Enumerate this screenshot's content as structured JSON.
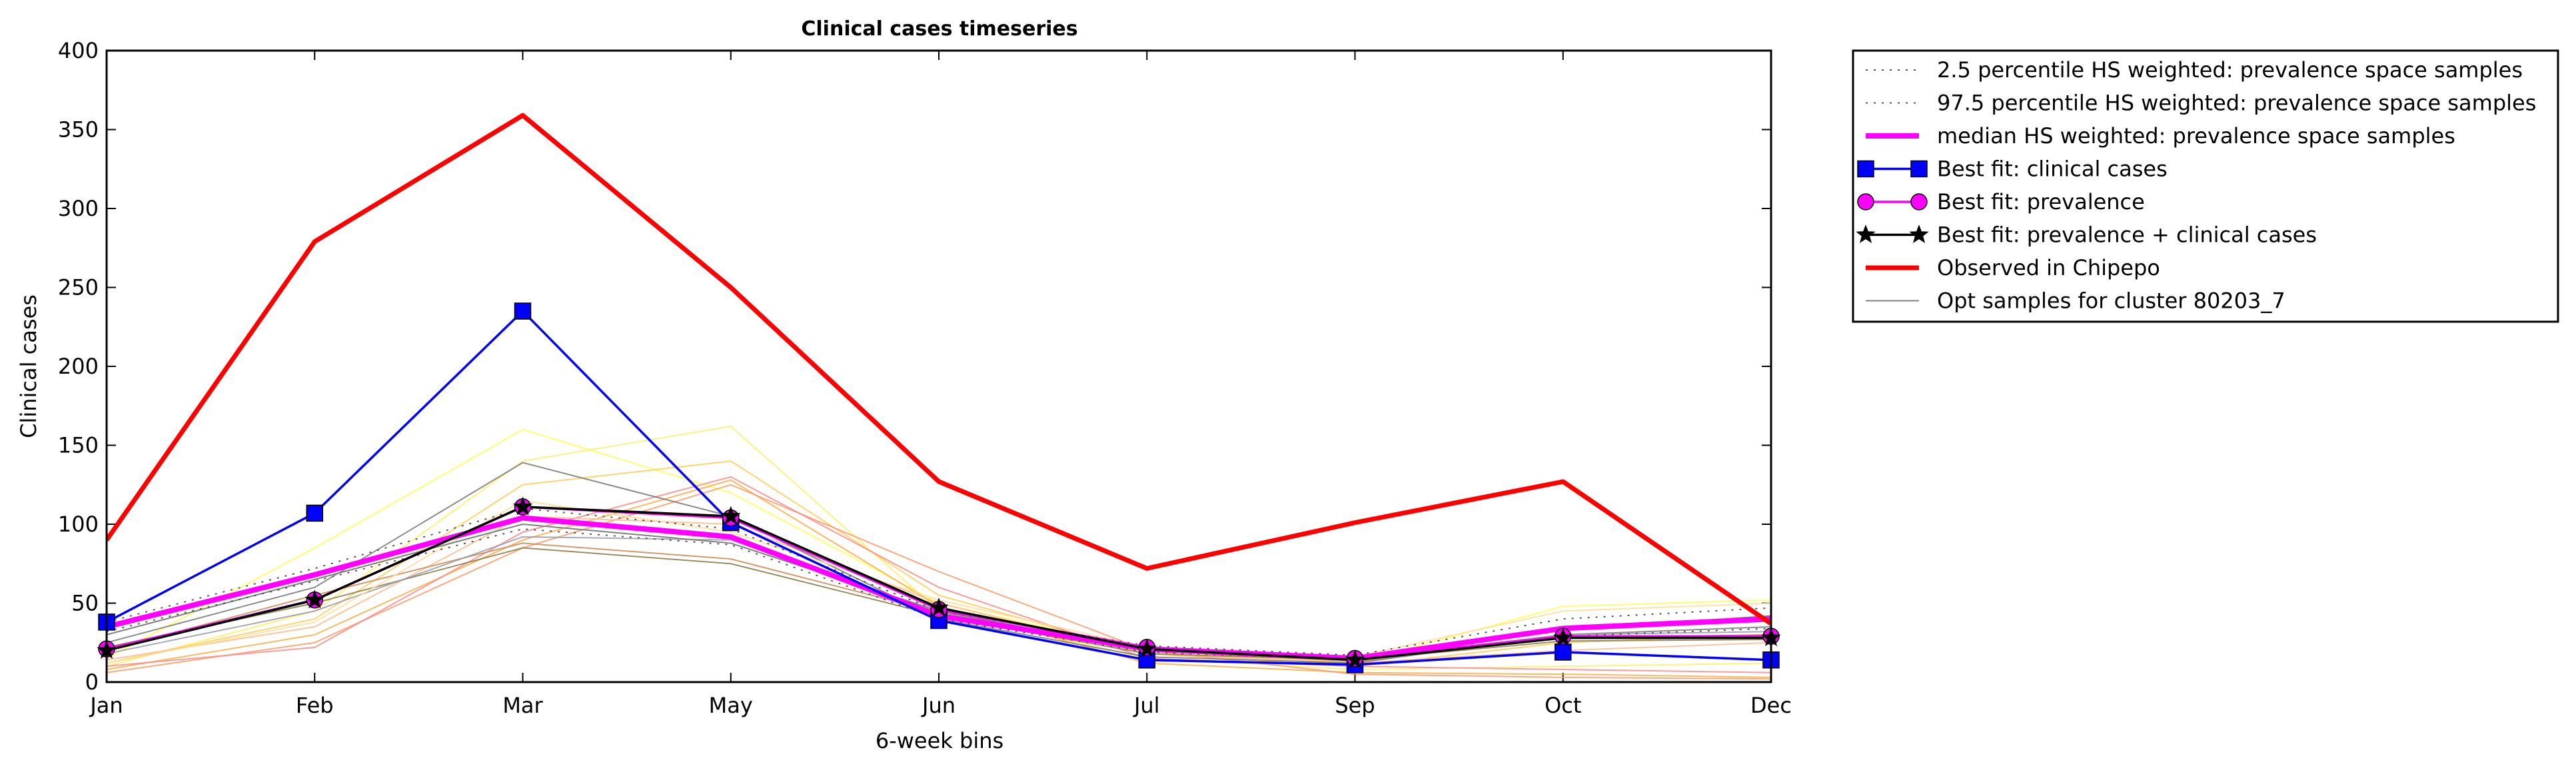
{
  "chart_data": {
    "type": "line",
    "title": "Clinical cases timeseries",
    "xlabel": "6-week bins",
    "ylabel": "Clinical cases",
    "categories": [
      "Jan",
      "Feb",
      "Mar",
      "May",
      "Jun",
      "Jul",
      "Sep",
      "Oct",
      "Dec"
    ],
    "ylim": [
      0,
      400
    ],
    "yticks": [
      0,
      50,
      100,
      150,
      200,
      250,
      300,
      350,
      400
    ],
    "legend_position": "outside-right-top",
    "series": [
      {
        "name": "2.5 percentile HS weighted: prevalence space samples",
        "color": "#555555",
        "style": "dotted",
        "values": [
          32,
          64,
          97,
          87,
          40,
          19,
          14,
          29,
          34
        ]
      },
      {
        "name": "97.5 percentile HS weighted: prevalence space samples",
        "color": "#555555",
        "style": "dotted",
        "values": [
          38,
          72,
          110,
          97,
          45,
          23,
          17,
          40,
          47
        ]
      },
      {
        "name": "median HS weighted: prevalence space samples",
        "color": "#ff00ff",
        "style": "thick",
        "values": [
          35,
          68,
          104,
          92,
          42,
          21,
          15,
          34,
          40
        ]
      },
      {
        "name": "Best fit: clinical cases",
        "color": "#0000ff",
        "marker": "square",
        "values": [
          38,
          107,
          235,
          101,
          39,
          14,
          11,
          19,
          14
        ]
      },
      {
        "name": "Best fit: prevalence",
        "color": "#ff00ff",
        "marker": "circle",
        "values": [
          21,
          52,
          111,
          104,
          46,
          22,
          15,
          29,
          29
        ]
      },
      {
        "name": "Best fit: prevalence + clinical cases",
        "color": "#000000",
        "marker": "star",
        "values": [
          20,
          52,
          111,
          105,
          47,
          21,
          14,
          28,
          28
        ]
      },
      {
        "name": "Observed in Chipepo",
        "color": "#ff0000",
        "style": "thick",
        "values": [
          90,
          279,
          359,
          250,
          127,
          72,
          101,
          127,
          37
        ]
      },
      {
        "name": "Opt samples for cluster 80203_7",
        "color": "#808080",
        "style": "thin",
        "values": [
          30,
          65,
          100,
          88,
          45,
          20,
          15,
          33,
          42
        ]
      }
    ],
    "sample_series": [
      {
        "color": "#ffff55",
        "values": [
          15,
          85,
          160,
          120,
          50,
          20,
          12,
          48,
          52
        ]
      },
      {
        "color": "#ffee66",
        "values": [
          10,
          45,
          140,
          162,
          45,
          15,
          8,
          10,
          12
        ]
      },
      {
        "color": "#ffcc55",
        "values": [
          12,
          40,
          125,
          140,
          55,
          18,
          10,
          25,
          30
        ]
      },
      {
        "color": "#ffaa44",
        "values": [
          8,
          30,
          90,
          128,
          48,
          12,
          6,
          5,
          3
        ]
      },
      {
        "color": "#ff9966",
        "values": [
          6,
          25,
          85,
          125,
          70,
          20,
          5,
          3,
          2
        ]
      },
      {
        "color": "#ff8888",
        "values": [
          10,
          22,
          95,
          130,
          60,
          15,
          10,
          8,
          6
        ]
      },
      {
        "color": "#ffbb88",
        "values": [
          14,
          35,
          105,
          100,
          50,
          18,
          12,
          20,
          25
        ]
      },
      {
        "color": "#cc8855",
        "values": [
          20,
          55,
          88,
          78,
          44,
          20,
          13,
          28,
          30
        ]
      },
      {
        "color": "#8a7a44",
        "values": [
          22,
          50,
          85,
          75,
          42,
          18,
          14,
          26,
          27
        ]
      },
      {
        "color": "#777777",
        "values": [
          25,
          60,
          139,
          105,
          40,
          16,
          12,
          30,
          35
        ]
      },
      {
        "color": "#9999aa",
        "values": [
          18,
          45,
          92,
          90,
          44,
          20,
          14,
          30,
          32
        ]
      },
      {
        "color": "#ffdd99",
        "values": [
          12,
          38,
          115,
          95,
          52,
          22,
          16,
          45,
          50
        ]
      }
    ]
  }
}
